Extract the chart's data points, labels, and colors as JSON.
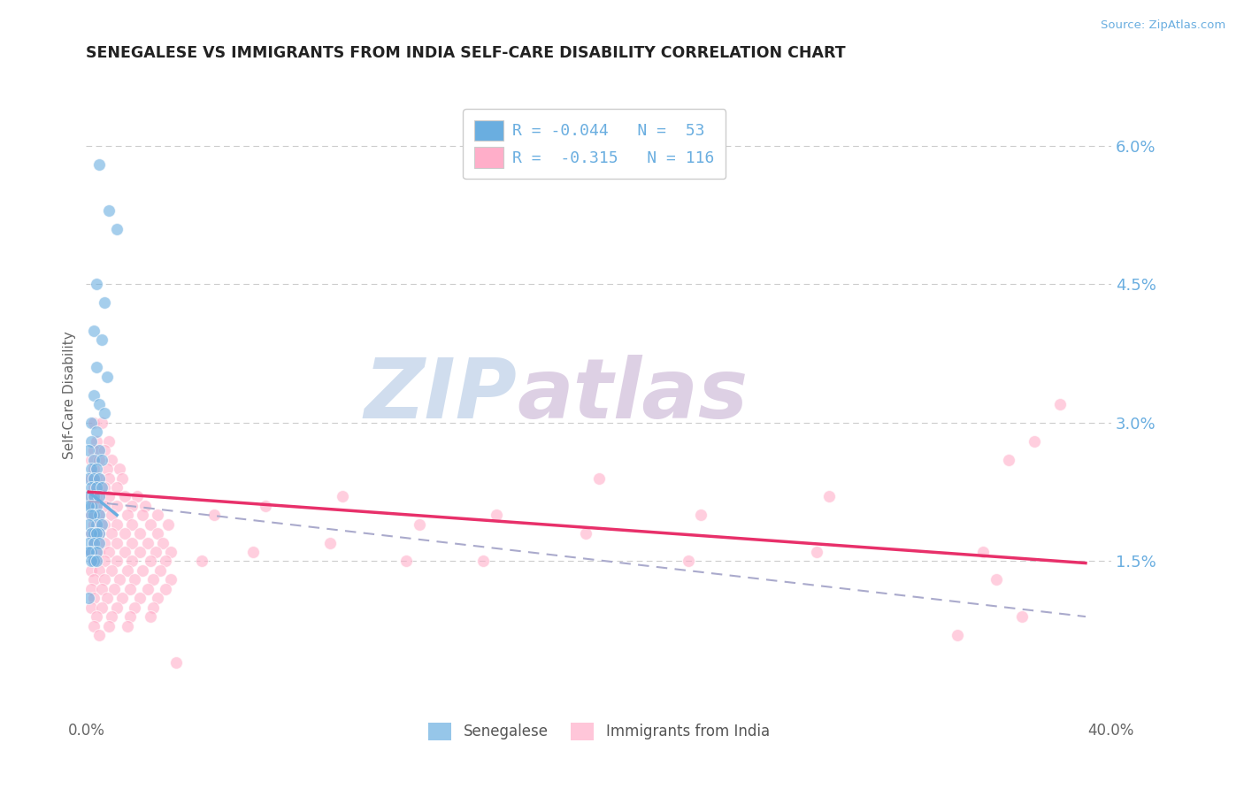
{
  "title": "SENEGALESE VS IMMIGRANTS FROM INDIA SELF-CARE DISABILITY CORRELATION CHART",
  "source": "Source: ZipAtlas.com",
  "ylabel": "Self-Care Disability",
  "xlim": [
    0.0,
    0.4
  ],
  "ylim": [
    -0.002,
    0.068
  ],
  "ytick_positions": [
    0.015,
    0.03,
    0.045,
    0.06
  ],
  "ytick_labels": [
    "1.5%",
    "3.0%",
    "4.5%",
    "6.0%"
  ],
  "grid_color": "#cccccc",
  "bg_color": "#ffffff",
  "blue_color": "#6aaee0",
  "pink_color": "#ffaec9",
  "blue_scatter": [
    [
      0.005,
      0.058
    ],
    [
      0.009,
      0.053
    ],
    [
      0.012,
      0.051
    ],
    [
      0.004,
      0.045
    ],
    [
      0.007,
      0.043
    ],
    [
      0.003,
      0.04
    ],
    [
      0.006,
      0.039
    ],
    [
      0.004,
      0.036
    ],
    [
      0.008,
      0.035
    ],
    [
      0.003,
      0.033
    ],
    [
      0.005,
      0.032
    ],
    [
      0.007,
      0.031
    ],
    [
      0.002,
      0.03
    ],
    [
      0.004,
      0.029
    ],
    [
      0.002,
      0.028
    ],
    [
      0.005,
      0.027
    ],
    [
      0.001,
      0.027
    ],
    [
      0.003,
      0.026
    ],
    [
      0.006,
      0.026
    ],
    [
      0.002,
      0.025
    ],
    [
      0.004,
      0.025
    ],
    [
      0.001,
      0.024
    ],
    [
      0.003,
      0.024
    ],
    [
      0.005,
      0.024
    ],
    [
      0.002,
      0.023
    ],
    [
      0.004,
      0.023
    ],
    [
      0.006,
      0.023
    ],
    [
      0.001,
      0.022
    ],
    [
      0.003,
      0.022
    ],
    [
      0.005,
      0.022
    ],
    [
      0.002,
      0.021
    ],
    [
      0.004,
      0.021
    ],
    [
      0.001,
      0.021
    ],
    [
      0.003,
      0.02
    ],
    [
      0.005,
      0.02
    ],
    [
      0.002,
      0.02
    ],
    [
      0.004,
      0.019
    ],
    [
      0.006,
      0.019
    ],
    [
      0.001,
      0.019
    ],
    [
      0.003,
      0.018
    ],
    [
      0.005,
      0.018
    ],
    [
      0.002,
      0.018
    ],
    [
      0.004,
      0.018
    ],
    [
      0.001,
      0.017
    ],
    [
      0.003,
      0.017
    ],
    [
      0.005,
      0.017
    ],
    [
      0.002,
      0.016
    ],
    [
      0.004,
      0.016
    ],
    [
      0.001,
      0.016
    ],
    [
      0.003,
      0.015
    ],
    [
      0.002,
      0.015
    ],
    [
      0.004,
      0.015
    ],
    [
      0.001,
      0.011
    ]
  ],
  "pink_scatter": [
    [
      0.003,
      0.03
    ],
    [
      0.006,
      0.03
    ],
    [
      0.004,
      0.028
    ],
    [
      0.009,
      0.028
    ],
    [
      0.003,
      0.027
    ],
    [
      0.007,
      0.027
    ],
    [
      0.002,
      0.026
    ],
    [
      0.005,
      0.026
    ],
    [
      0.01,
      0.026
    ],
    [
      0.003,
      0.025
    ],
    [
      0.008,
      0.025
    ],
    [
      0.013,
      0.025
    ],
    [
      0.002,
      0.024
    ],
    [
      0.005,
      0.024
    ],
    [
      0.009,
      0.024
    ],
    [
      0.014,
      0.024
    ],
    [
      0.003,
      0.023
    ],
    [
      0.007,
      0.023
    ],
    [
      0.012,
      0.023
    ],
    [
      0.002,
      0.022
    ],
    [
      0.005,
      0.022
    ],
    [
      0.009,
      0.022
    ],
    [
      0.015,
      0.022
    ],
    [
      0.02,
      0.022
    ],
    [
      0.003,
      0.021
    ],
    [
      0.007,
      0.021
    ],
    [
      0.012,
      0.021
    ],
    [
      0.018,
      0.021
    ],
    [
      0.023,
      0.021
    ],
    [
      0.002,
      0.02
    ],
    [
      0.005,
      0.02
    ],
    [
      0.01,
      0.02
    ],
    [
      0.016,
      0.02
    ],
    [
      0.022,
      0.02
    ],
    [
      0.028,
      0.02
    ],
    [
      0.003,
      0.019
    ],
    [
      0.007,
      0.019
    ],
    [
      0.012,
      0.019
    ],
    [
      0.018,
      0.019
    ],
    [
      0.025,
      0.019
    ],
    [
      0.032,
      0.019
    ],
    [
      0.002,
      0.018
    ],
    [
      0.005,
      0.018
    ],
    [
      0.01,
      0.018
    ],
    [
      0.015,
      0.018
    ],
    [
      0.021,
      0.018
    ],
    [
      0.028,
      0.018
    ],
    [
      0.003,
      0.017
    ],
    [
      0.007,
      0.017
    ],
    [
      0.012,
      0.017
    ],
    [
      0.018,
      0.017
    ],
    [
      0.024,
      0.017
    ],
    [
      0.03,
      0.017
    ],
    [
      0.002,
      0.016
    ],
    [
      0.005,
      0.016
    ],
    [
      0.009,
      0.016
    ],
    [
      0.015,
      0.016
    ],
    [
      0.021,
      0.016
    ],
    [
      0.027,
      0.016
    ],
    [
      0.033,
      0.016
    ],
    [
      0.003,
      0.015
    ],
    [
      0.007,
      0.015
    ],
    [
      0.012,
      0.015
    ],
    [
      0.018,
      0.015
    ],
    [
      0.025,
      0.015
    ],
    [
      0.031,
      0.015
    ],
    [
      0.002,
      0.014
    ],
    [
      0.005,
      0.014
    ],
    [
      0.01,
      0.014
    ],
    [
      0.016,
      0.014
    ],
    [
      0.022,
      0.014
    ],
    [
      0.029,
      0.014
    ],
    [
      0.003,
      0.013
    ],
    [
      0.007,
      0.013
    ],
    [
      0.013,
      0.013
    ],
    [
      0.019,
      0.013
    ],
    [
      0.026,
      0.013
    ],
    [
      0.033,
      0.013
    ],
    [
      0.002,
      0.012
    ],
    [
      0.006,
      0.012
    ],
    [
      0.011,
      0.012
    ],
    [
      0.017,
      0.012
    ],
    [
      0.024,
      0.012
    ],
    [
      0.031,
      0.012
    ],
    [
      0.003,
      0.011
    ],
    [
      0.008,
      0.011
    ],
    [
      0.014,
      0.011
    ],
    [
      0.021,
      0.011
    ],
    [
      0.028,
      0.011
    ],
    [
      0.002,
      0.01
    ],
    [
      0.006,
      0.01
    ],
    [
      0.012,
      0.01
    ],
    [
      0.019,
      0.01
    ],
    [
      0.026,
      0.01
    ],
    [
      0.004,
      0.009
    ],
    [
      0.01,
      0.009
    ],
    [
      0.017,
      0.009
    ],
    [
      0.025,
      0.009
    ],
    [
      0.003,
      0.008
    ],
    [
      0.009,
      0.008
    ],
    [
      0.016,
      0.008
    ],
    [
      0.005,
      0.007
    ],
    [
      0.38,
      0.032
    ],
    [
      0.37,
      0.028
    ],
    [
      0.36,
      0.026
    ],
    [
      0.35,
      0.016
    ],
    [
      0.355,
      0.013
    ],
    [
      0.365,
      0.009
    ],
    [
      0.34,
      0.007
    ],
    [
      0.29,
      0.022
    ],
    [
      0.285,
      0.016
    ],
    [
      0.24,
      0.02
    ],
    [
      0.235,
      0.015
    ],
    [
      0.2,
      0.024
    ],
    [
      0.195,
      0.018
    ],
    [
      0.16,
      0.02
    ],
    [
      0.155,
      0.015
    ],
    [
      0.13,
      0.019
    ],
    [
      0.125,
      0.015
    ],
    [
      0.1,
      0.022
    ],
    [
      0.095,
      0.017
    ],
    [
      0.07,
      0.021
    ],
    [
      0.065,
      0.016
    ],
    [
      0.05,
      0.02
    ],
    [
      0.045,
      0.015
    ],
    [
      0.035,
      0.004
    ]
  ],
  "blue_trend_x": [
    0.001,
    0.012
  ],
  "blue_trend_y": [
    0.0225,
    0.02
  ],
  "pink_trend_x": [
    0.001,
    0.39
  ],
  "pink_trend_y": [
    0.0225,
    0.0148
  ],
  "dashed_trend_x": [
    0.001,
    0.39
  ],
  "dashed_trend_y": [
    0.0215,
    0.009
  ],
  "watermark_zip": "ZIP",
  "watermark_atlas": "atlas",
  "watermark_color_zip": "#c8d8ec",
  "watermark_color_atlas": "#d8c8e0"
}
